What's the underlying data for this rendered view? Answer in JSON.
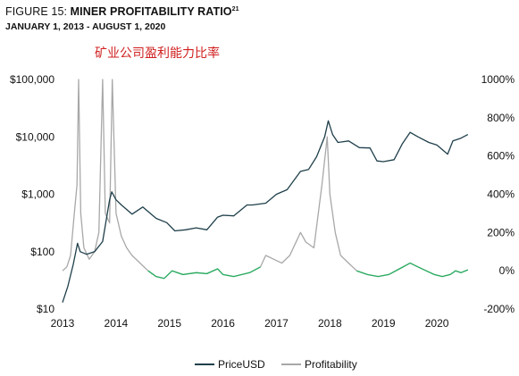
{
  "header": {
    "figure_label": "FIGURE 15:",
    "title": "MINER PROFITABILITY RATIO",
    "footnote": "21",
    "subtitle": "JANUARY 1, 2013 - AUGUST 1, 2020",
    "annotation": "矿业公司盈利能力比率"
  },
  "chart_data": {
    "type": "line",
    "title": "MINER PROFITABILITY RATIO",
    "subtitle": "JANUARY 1, 2013 - AUGUST 1, 2020",
    "x_range": [
      2013.0,
      2020.6
    ],
    "x_ticks": [
      "2013",
      "2014",
      "2015",
      "2016",
      "2017",
      "2018",
      "2019",
      "2020"
    ],
    "y_left": {
      "scale": "log",
      "range": [
        10,
        100000
      ],
      "ticks": [
        "$10",
        "$100",
        "$1,000",
        "$10,000",
        "$100,000"
      ]
    },
    "y_right": {
      "scale": "linear",
      "range": [
        -200,
        1000
      ],
      "unit": "%",
      "ticks": [
        "-200%",
        "0%",
        "200%",
        "400%",
        "600%",
        "800%",
        "1000%"
      ]
    },
    "grid": false,
    "legend_position": "bottom",
    "series": [
      {
        "name": "PriceUSD",
        "axis": "left",
        "color": "#1f3f4a",
        "points": [
          [
            2013.0,
            13
          ],
          [
            2013.1,
            25
          ],
          [
            2013.2,
            60
          ],
          [
            2013.28,
            140
          ],
          [
            2013.33,
            100
          ],
          [
            2013.45,
            90
          ],
          [
            2013.6,
            100
          ],
          [
            2013.75,
            150
          ],
          [
            2013.88,
            800
          ],
          [
            2013.92,
            1100
          ],
          [
            2014.0,
            800
          ],
          [
            2014.1,
            650
          ],
          [
            2014.3,
            450
          ],
          [
            2014.5,
            600
          ],
          [
            2014.75,
            380
          ],
          [
            2014.95,
            320
          ],
          [
            2015.1,
            230
          ],
          [
            2015.3,
            240
          ],
          [
            2015.5,
            260
          ],
          [
            2015.7,
            240
          ],
          [
            2015.9,
            400
          ],
          [
            2016.0,
            430
          ],
          [
            2016.2,
            420
          ],
          [
            2016.45,
            650
          ],
          [
            2016.55,
            650
          ],
          [
            2016.8,
            700
          ],
          [
            2017.0,
            1000
          ],
          [
            2017.2,
            1200
          ],
          [
            2017.45,
            2500
          ],
          [
            2017.6,
            2700
          ],
          [
            2017.75,
            4500
          ],
          [
            2017.9,
            10000
          ],
          [
            2017.97,
            19000
          ],
          [
            2018.05,
            11000
          ],
          [
            2018.15,
            8000
          ],
          [
            2018.35,
            8500
          ],
          [
            2018.55,
            6500
          ],
          [
            2018.75,
            6400
          ],
          [
            2018.88,
            3800
          ],
          [
            2019.0,
            3700
          ],
          [
            2019.2,
            4000
          ],
          [
            2019.35,
            7500
          ],
          [
            2019.5,
            12000
          ],
          [
            2019.65,
            10000
          ],
          [
            2019.85,
            8000
          ],
          [
            2020.0,
            7200
          ],
          [
            2020.2,
            5000
          ],
          [
            2020.3,
            8500
          ],
          [
            2020.45,
            9500
          ],
          [
            2020.58,
            11000
          ]
        ]
      },
      {
        "name": "Profitability",
        "axis": "right",
        "color": "#a8a8a8",
        "low_color": "#27ae60",
        "points": [
          [
            2013.0,
            0
          ],
          [
            2013.08,
            20
          ],
          [
            2013.15,
            80
          ],
          [
            2013.22,
            300
          ],
          [
            2013.27,
            450
          ],
          [
            2013.3,
            1000
          ],
          [
            2013.34,
            300
          ],
          [
            2013.4,
            120
          ],
          [
            2013.5,
            60
          ],
          [
            2013.6,
            100
          ],
          [
            2013.68,
            200
          ],
          [
            2013.75,
            1000
          ],
          [
            2013.8,
            300
          ],
          [
            2013.88,
            250
          ],
          [
            2013.93,
            1000
          ],
          [
            2014.0,
            300
          ],
          [
            2014.1,
            180
          ],
          [
            2014.2,
            120
          ],
          [
            2014.3,
            80
          ],
          [
            2014.45,
            40
          ],
          [
            2014.6,
            0
          ],
          [
            2014.75,
            -30
          ],
          [
            2014.9,
            -40
          ],
          [
            2015.05,
            0
          ],
          [
            2015.25,
            -20
          ],
          [
            2015.5,
            -10
          ],
          [
            2015.7,
            -15
          ],
          [
            2015.9,
            10
          ],
          [
            2016.0,
            -20
          ],
          [
            2016.2,
            -30
          ],
          [
            2016.5,
            -10
          ],
          [
            2016.7,
            20
          ],
          [
            2016.8,
            80
          ],
          [
            2016.95,
            60
          ],
          [
            2017.1,
            40
          ],
          [
            2017.25,
            80
          ],
          [
            2017.45,
            200
          ],
          [
            2017.55,
            150
          ],
          [
            2017.7,
            120
          ],
          [
            2017.85,
            450
          ],
          [
            2017.95,
            700
          ],
          [
            2018.0,
            400
          ],
          [
            2018.1,
            200
          ],
          [
            2018.2,
            80
          ],
          [
            2018.35,
            40
          ],
          [
            2018.5,
            0
          ],
          [
            2018.7,
            -20
          ],
          [
            2018.9,
            -30
          ],
          [
            2019.1,
            -20
          ],
          [
            2019.3,
            10
          ],
          [
            2019.5,
            40
          ],
          [
            2019.65,
            20
          ],
          [
            2019.8,
            0
          ],
          [
            2019.95,
            -20
          ],
          [
            2020.1,
            -30
          ],
          [
            2020.25,
            -20
          ],
          [
            2020.35,
            0
          ],
          [
            2020.45,
            -10
          ],
          [
            2020.58,
            5
          ]
        ]
      }
    ]
  }
}
